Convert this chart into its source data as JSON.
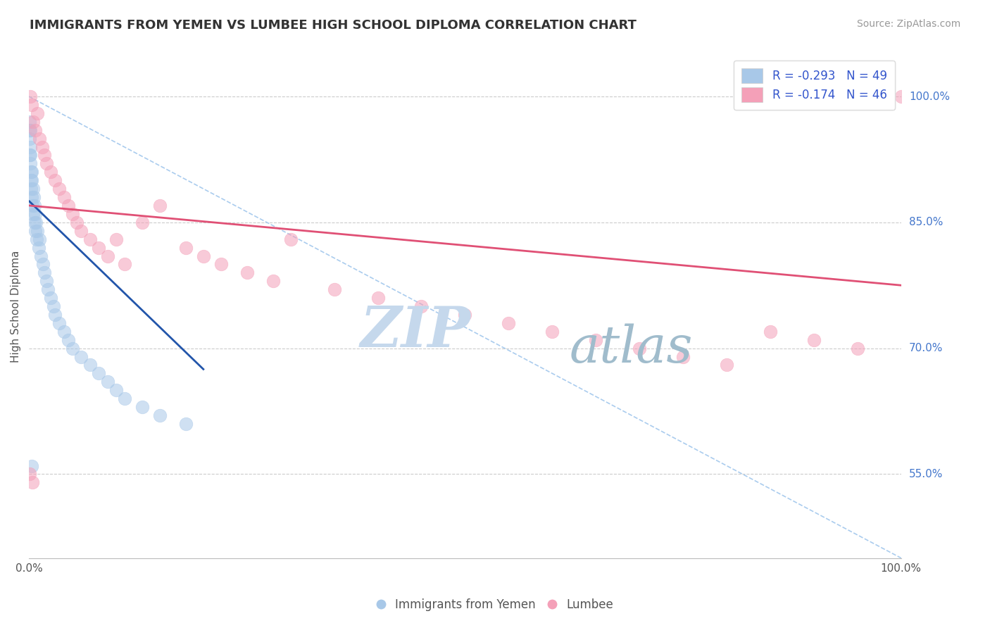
{
  "title": "IMMIGRANTS FROM YEMEN VS LUMBEE HIGH SCHOOL DIPLOMA CORRELATION CHART",
  "source": "Source: ZipAtlas.com",
  "ylabel": "High School Diploma",
  "legend_blue_label": "Immigrants from Yemen",
  "legend_pink_label": "Lumbee",
  "R_blue": -0.293,
  "N_blue": 49,
  "R_pink": -0.174,
  "N_pink": 46,
  "blue_color": "#a8c8e8",
  "pink_color": "#f4a0b8",
  "blue_line_color": "#2255aa",
  "pink_line_color": "#e05075",
  "dash_line_color": "#aaccee",
  "watermark_zip": "ZIP",
  "watermark_atlas": "atlas",
  "watermark_color_zip": "#c5d8ec",
  "watermark_color_atlas": "#a0bccc",
  "background_color": "#ffffff",
  "title_fontsize": 13,
  "xlim": [
    0,
    100
  ],
  "ylim": [
    45,
    105
  ],
  "yticks": [
    55,
    70,
    85,
    100
  ],
  "ytick_labels": [
    "55.0%",
    "70.0%",
    "85.0%",
    "100.0%"
  ],
  "blue_scatter_x": [
    0.05,
    0.08,
    0.1,
    0.12,
    0.15,
    0.18,
    0.2,
    0.22,
    0.25,
    0.28,
    0.3,
    0.35,
    0.4,
    0.45,
    0.5,
    0.55,
    0.6,
    0.65,
    0.7,
    0.75,
    0.8,
    0.9,
    1.0,
    1.1,
    1.2,
    1.4,
    1.6,
    1.8,
    2.0,
    2.2,
    2.5,
    2.8,
    3.0,
    3.5,
    4.0,
    4.5,
    5.0,
    6.0,
    7.0,
    8.0,
    9.0,
    10.0,
    11.0,
    13.0,
    15.0,
    18.0,
    0.06,
    0.14,
    0.32
  ],
  "blue_scatter_y": [
    97.0,
    95.0,
    93.0,
    96.0,
    94.0,
    92.0,
    91.0,
    90.0,
    89.0,
    91.0,
    88.0,
    90.0,
    87.0,
    89.0,
    86.0,
    88.0,
    87.0,
    85.0,
    86.0,
    84.0,
    85.0,
    83.0,
    84.0,
    82.0,
    83.0,
    81.0,
    80.0,
    79.0,
    78.0,
    77.0,
    76.0,
    75.0,
    74.0,
    73.0,
    72.0,
    71.0,
    70.0,
    69.0,
    68.0,
    67.0,
    66.0,
    65.0,
    64.0,
    63.0,
    62.0,
    61.0,
    96.0,
    93.0,
    56.0
  ],
  "pink_scatter_x": [
    0.15,
    0.3,
    0.5,
    0.7,
    1.0,
    1.2,
    1.5,
    1.8,
    2.0,
    2.5,
    3.0,
    3.5,
    4.0,
    4.5,
    5.0,
    5.5,
    6.0,
    7.0,
    8.0,
    9.0,
    10.0,
    11.0,
    13.0,
    15.0,
    18.0,
    20.0,
    22.0,
    25.0,
    28.0,
    30.0,
    35.0,
    40.0,
    45.0,
    50.0,
    55.0,
    60.0,
    65.0,
    70.0,
    75.0,
    80.0,
    85.0,
    90.0,
    95.0,
    100.0,
    0.08,
    0.4
  ],
  "pink_scatter_y": [
    100.0,
    99.0,
    97.0,
    96.0,
    98.0,
    95.0,
    94.0,
    93.0,
    92.0,
    91.0,
    90.0,
    89.0,
    88.0,
    87.0,
    86.0,
    85.0,
    84.0,
    83.0,
    82.0,
    81.0,
    83.0,
    80.0,
    85.0,
    87.0,
    82.0,
    81.0,
    80.0,
    79.0,
    78.0,
    83.0,
    77.0,
    76.0,
    75.0,
    74.0,
    73.0,
    72.0,
    71.0,
    70.0,
    69.0,
    68.0,
    72.0,
    71.0,
    70.0,
    100.0,
    55.0,
    54.0
  ],
  "blue_line_x": [
    0.05,
    20.0
  ],
  "blue_line_y_start": 87.5,
  "blue_line_y_end": 67.5,
  "pink_line_x": [
    0.08,
    100.0
  ],
  "pink_line_y_start": 87.0,
  "pink_line_y_end": 77.5,
  "dash_line_x": [
    0.0,
    100.0
  ],
  "dash_line_y_start": 100.0,
  "dash_line_y_end": 45.0
}
